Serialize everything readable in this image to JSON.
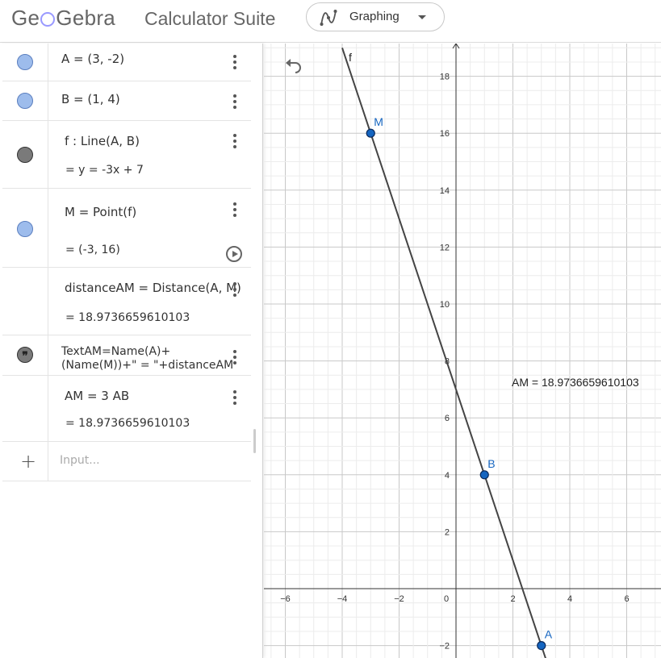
{
  "header": {
    "logo_text": "GeoGebra",
    "suite_title": "Calculator Suite",
    "app_picker": {
      "label": "Graphing",
      "icon": "graphing-app-icon"
    }
  },
  "algebra": {
    "rows": [
      {
        "definition": "A = (3, -2)",
        "marble": "blue"
      },
      {
        "definition": "B = (1, 4)",
        "marble": "blue"
      },
      {
        "definition": "f : Line(A, B)",
        "value": "=  y = -3x + 7",
        "marble": "gray"
      },
      {
        "definition": "M = Point(f)",
        "value": "=  (-3, 16)",
        "marble": "blue"
      },
      {
        "definition": "distanceAM  =  Distance(A, M)",
        "value": "=  18.9736659610103"
      },
      {
        "definition_line1": "TextAM=Name(A)+",
        "definition_line2": "(Name(M))+\" = \"+distanceAM",
        "marble": "quote"
      },
      {
        "definition": "AM  =  3 AB",
        "value": "=  18.9736659610103"
      }
    ],
    "input_placeholder": "Input..."
  },
  "graphics": {
    "overlay_text": "AM = 18.9736659610103",
    "line_label": "f",
    "points": [
      {
        "name": "A",
        "x": 3,
        "y": -2
      },
      {
        "name": "B",
        "x": 1,
        "y": 4
      },
      {
        "name": "M",
        "x": -3,
        "y": 16
      }
    ],
    "x_ticks": [
      "−6",
      "−4",
      "−2",
      "0",
      "2",
      "4",
      "6"
    ],
    "y_ticks": [
      "18",
      "16",
      "14",
      "12",
      "10",
      "8",
      "6",
      "4",
      "2",
      "−2"
    ],
    "colors": {
      "point_fill": "#1565c0",
      "point_label": "#1565c0",
      "line": "#444444",
      "grid_major": "#c8c8c8",
      "grid_minor": "#ececec"
    }
  },
  "chart_data": {
    "type": "line",
    "title": "",
    "xlabel": "",
    "ylabel": "",
    "xlim": [
      -6.7,
      7.3
    ],
    "ylim": [
      -2.5,
      19.2
    ],
    "series": [
      {
        "name": "f",
        "equation": "y = -3x + 7",
        "x": [
          -4,
          3.5
        ],
        "y": [
          19,
          -3.5
        ]
      }
    ],
    "points": [
      {
        "label": "A",
        "x": 3,
        "y": -2
      },
      {
        "label": "B",
        "x": 1,
        "y": 4
      },
      {
        "label": "M",
        "x": -3,
        "y": 16
      }
    ],
    "grid": true
  }
}
